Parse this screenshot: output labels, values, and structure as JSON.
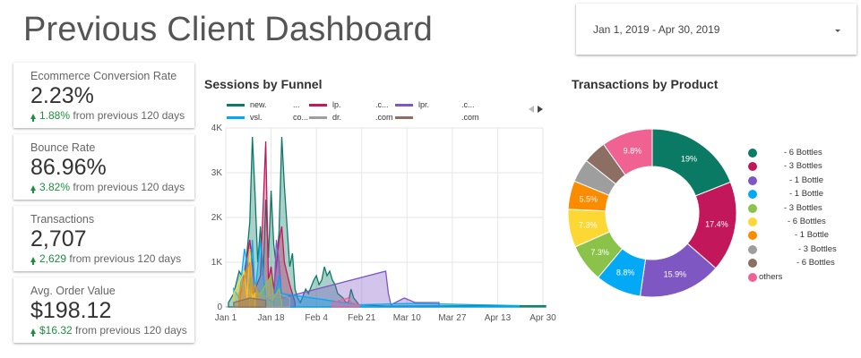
{
  "page": {
    "title": "Previous Client Dashboard"
  },
  "date_range": {
    "label": "Jan 1, 2019 - Apr 30, 2019"
  },
  "kpis": [
    {
      "label": "Ecommerce Conversion Rate",
      "value": "2.23%",
      "delta": "1.88%",
      "delta_suffix": "from previous 120 days"
    },
    {
      "label": "Bounce Rate",
      "value": "86.96%",
      "delta": "3.82%",
      "delta_suffix": "from previous 120 days"
    },
    {
      "label": "Transactions",
      "value": "2,707",
      "delta": "2,629",
      "delta_suffix": "from previous 120 days"
    },
    {
      "label": "Avg. Order Value",
      "value": "$198.12",
      "delta": "$16.32",
      "delta_suffix": "from previous 120 days"
    }
  ],
  "colors": {
    "teal": "#0b7a64",
    "crimson": "#c2185b",
    "purple": "#7e57c2",
    "blue": "#03a9f4",
    "green": "#8bc34a",
    "yellow": "#fdd835",
    "orange": "#fb8c00",
    "grey": "#9e9e9e",
    "brown": "#8d6e63",
    "pink": "#f06292",
    "success": "#1e8e3e"
  },
  "chart_data": [
    {
      "type": "area",
      "title": "Sessions by Funnel",
      "legend": {
        "entries": [
          {
            "text": "new.",
            "color": "#0b7a64"
          },
          {
            "text": "...",
            "color": null
          },
          {
            "text": "lp.",
            "color": "#c2185b"
          },
          {
            "text": ".c...",
            "color": null
          },
          {
            "text": "lpr.",
            "color": "#7e57c2"
          },
          {
            "text": ".c...",
            "color": null
          },
          {
            "text": "vsl.",
            "color": "#03a9f4"
          },
          {
            "text": "co...",
            "color": null
          },
          {
            "text": "dr.",
            "color": "#9e9e9e"
          },
          {
            "text": ".com",
            "color": null
          },
          {
            "text": "",
            "color": "#8d6e63"
          },
          {
            "text": ".com",
            "color": null
          }
        ],
        "placement": "top",
        "paginated": true
      },
      "x_ticks": [
        "Jan 1",
        "Jan 18",
        "Feb 4",
        "Feb 21",
        "Mar 10",
        "Mar 27",
        "Apr 13",
        "Apr 30"
      ],
      "y_ticks": [
        "0",
        "1K",
        "2K",
        "3K",
        "4K"
      ],
      "ylim": [
        0,
        4000
      ],
      "grid": true,
      "series": [
        {
          "color": "#0b7a64",
          "points": [
            [
              1,
              100
            ],
            [
              3,
              300
            ],
            [
              5,
              800
            ],
            [
              7,
              600
            ],
            [
              9,
              1900
            ],
            [
              10,
              3800
            ],
            [
              11,
              2500
            ],
            [
              12,
              1000
            ],
            [
              13,
              1800
            ],
            [
              14,
              700
            ],
            [
              15,
              2400
            ],
            [
              16,
              1100
            ],
            [
              17,
              2600
            ],
            [
              18,
              1400
            ],
            [
              19,
              900
            ],
            [
              20,
              1700
            ],
            [
              21,
              3800
            ],
            [
              22,
              2700
            ],
            [
              23,
              1800
            ],
            [
              24,
              900
            ],
            [
              25,
              1200
            ],
            [
              26,
              400
            ],
            [
              27,
              200
            ],
            [
              28,
              100
            ],
            [
              30,
              400
            ],
            [
              31,
              300
            ],
            [
              33,
              600
            ],
            [
              34,
              700
            ],
            [
              35,
              500
            ],
            [
              36,
              600
            ],
            [
              37,
              900
            ],
            [
              38,
              700
            ],
            [
              39,
              800
            ],
            [
              40,
              600
            ],
            [
              41,
              500
            ],
            [
              42,
              300
            ],
            [
              44,
              200
            ],
            [
              45,
              100
            ],
            [
              46,
              100
            ],
            [
              47,
              400
            ],
            [
              48,
              200
            ],
            [
              50,
              50
            ],
            [
              60,
              20
            ],
            [
              120,
              30
            ]
          ]
        },
        {
          "color": "#c2185b",
          "points": [
            [
              5,
              100
            ],
            [
              9,
              1500
            ],
            [
              11,
              400
            ],
            [
              13,
              700
            ],
            [
              15,
              3700
            ],
            [
              16,
              600
            ],
            [
              17,
              900
            ],
            [
              18,
              400
            ],
            [
              20,
              1500
            ],
            [
              21,
              1800
            ],
            [
              22,
              1000
            ],
            [
              24,
              500
            ],
            [
              26,
              100
            ]
          ]
        },
        {
          "color": "#7e57c2",
          "points": [
            [
              18,
              100
            ],
            [
              19,
              1500
            ],
            [
              20,
              1000
            ],
            [
              21,
              200
            ],
            [
              60,
              800
            ],
            [
              61,
              300
            ],
            [
              62,
              50
            ],
            [
              67,
              200
            ],
            [
              71,
              100
            ],
            [
              80,
              100
            ]
          ]
        },
        {
          "color": "#03a9f4",
          "points": [
            [
              3,
              400
            ],
            [
              5,
              200
            ],
            [
              7,
              1300
            ],
            [
              8,
              1000
            ],
            [
              9,
              400
            ],
            [
              10,
              1500
            ],
            [
              11,
              300
            ],
            [
              13,
              1500
            ],
            [
              14,
              800
            ],
            [
              15,
              200
            ],
            [
              18,
              100
            ],
            [
              20,
              700
            ],
            [
              21,
              300
            ],
            [
              50,
              50
            ],
            [
              70,
              80
            ],
            [
              110,
              30
            ]
          ]
        },
        {
          "color": "#8bc34a",
          "points": [
            [
              9,
              300
            ],
            [
              13,
              300
            ],
            [
              17,
              700
            ],
            [
              18,
              200
            ],
            [
              20,
              400
            ],
            [
              21,
              100
            ]
          ]
        },
        {
          "color": "#fdd835",
          "points": [
            [
              3,
              300
            ],
            [
              7,
              800
            ],
            [
              8,
              200
            ],
            [
              9,
              1300
            ],
            [
              10,
              200
            ],
            [
              11,
              300
            ]
          ]
        },
        {
          "color": "#fb8c00",
          "points": [
            [
              5,
              300
            ],
            [
              9,
              1000
            ],
            [
              10,
              300
            ],
            [
              11,
              500
            ],
            [
              13,
              100
            ]
          ]
        },
        {
          "color": "#9e9e9e",
          "points": [
            [
              12,
              200
            ],
            [
              20,
              300
            ],
            [
              24,
              200
            ]
          ]
        },
        {
          "color": "#8d6e63",
          "points": [
            [
              3,
              100
            ],
            [
              9,
              200
            ],
            [
              15,
              150
            ]
          ]
        },
        {
          "color": "#f06292",
          "points": [
            [
              40,
              100
            ],
            [
              46,
              200
            ],
            [
              47,
              100
            ],
            [
              50,
              50
            ]
          ]
        }
      ]
    },
    {
      "type": "pie",
      "title": "Transactions by Product",
      "donut": true,
      "legend_placement": "right",
      "slices": [
        {
          "label": "- 6 Bottles",
          "value": 19.0,
          "display": "19%",
          "color": "#0b7a64"
        },
        {
          "label": "- 3 Bottles",
          "value": 17.4,
          "display": "17.4%",
          "color": "#c2185b"
        },
        {
          "label": "- 1 Bottle",
          "value": 15.9,
          "display": "15.9%",
          "color": "#7e57c2"
        },
        {
          "label": "- 1 Bottle",
          "value": 8.8,
          "display": "8.8%",
          "color": "#03a9f4"
        },
        {
          "label": "- 3 Bottles",
          "value": 7.3,
          "display": "7.3%",
          "color": "#8bc34a"
        },
        {
          "label": "- 6 Bottles",
          "value": 7.3,
          "display": "7.3%",
          "color": "#fdd835"
        },
        {
          "label": "- 1 Bottle",
          "value": 5.5,
          "display": "5.5%",
          "color": "#fb8c00"
        },
        {
          "label": "- 3 Bottles",
          "value": 4.5,
          "display": "",
          "color": "#9e9e9e"
        },
        {
          "label": "- 6 Bottles",
          "value": 4.5,
          "display": "",
          "color": "#8d6e63"
        },
        {
          "label": "others",
          "value": 9.8,
          "display": "9.8%",
          "color": "#f06292"
        }
      ]
    }
  ]
}
